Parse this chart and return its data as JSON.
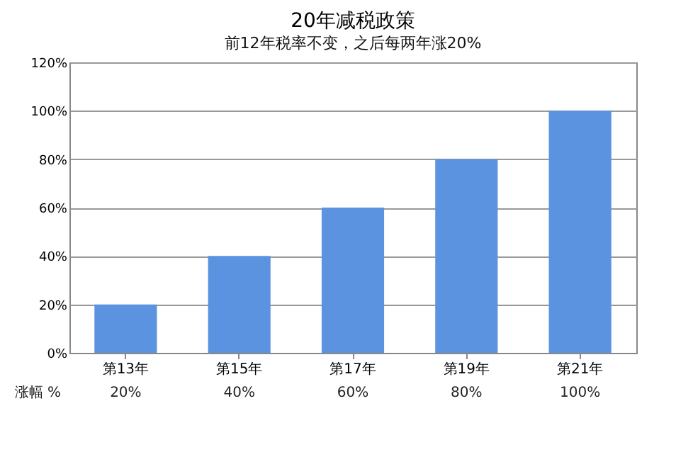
{
  "chart_data": {
    "type": "bar",
    "title": "20年减税政策",
    "subtitle": "前12年税率不变，之后每两年涨20%",
    "categories": [
      "第13年",
      "第15年",
      "第17年",
      "第19年",
      "第21年"
    ],
    "values": [
      20,
      40,
      60,
      80,
      100
    ],
    "color": "#5b93e0",
    "value_labels": [
      "20%",
      "40%",
      "60%",
      "80%",
      "100%"
    ],
    "annotations": [
      "涨幅 %"
    ],
    "ylim": [
      0,
      120
    ],
    "yticks": [
      {
        "value": 0,
        "label": "0%"
      },
      {
        "value": 20,
        "label": "20%"
      },
      {
        "value": 40,
        "label": "40%"
      },
      {
        "value": 60,
        "label": "60%"
      },
      {
        "value": 80,
        "label": "80%"
      },
      {
        "value": 100,
        "label": "100%"
      },
      {
        "value": 120,
        "label": "120%"
      }
    ],
    "grid": "y"
  }
}
